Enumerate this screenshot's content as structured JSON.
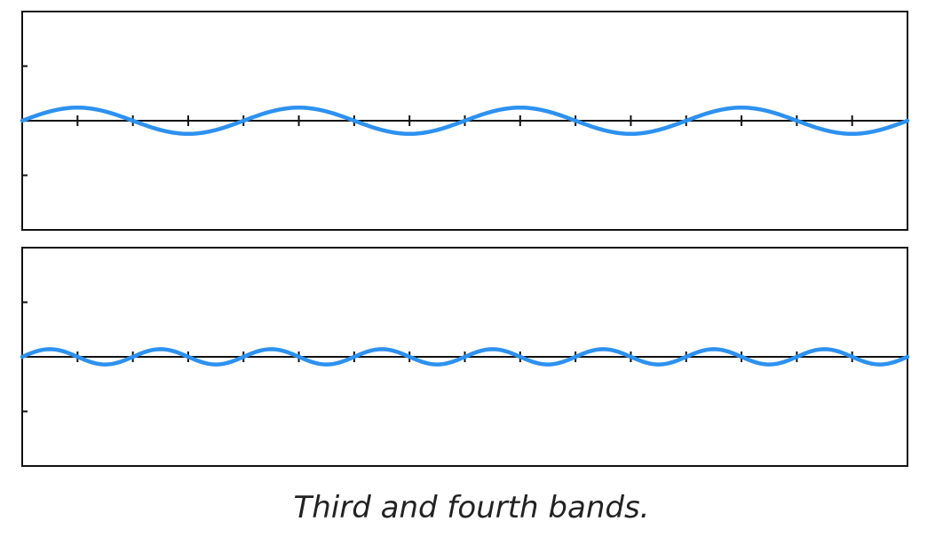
{
  "caption": "Third and fourth bands.",
  "colors": {
    "wave": "#2d91f0",
    "axis": "#111111",
    "frame": "#111111",
    "background": "#ffffff"
  },
  "chart_data": [
    {
      "type": "line",
      "title": "",
      "xlabel": "",
      "ylabel": "",
      "xlim": [
        0,
        16
      ],
      "ylim": [
        -1,
        1
      ],
      "x_ticks": [
        1,
        2,
        3,
        4,
        5,
        6,
        7,
        8,
        9,
        10,
        11,
        12,
        13,
        14,
        15
      ],
      "y_ticks": [
        -0.5,
        0.5
      ],
      "grid": false,
      "legend": "none",
      "series": [
        {
          "function": "sine",
          "amplitude": 0.12,
          "period": 4,
          "phase": 0,
          "samples": 321
        }
      ]
    },
    {
      "type": "line",
      "title": "",
      "xlabel": "",
      "ylabel": "",
      "xlim": [
        0,
        16
      ],
      "ylim": [
        -1,
        1
      ],
      "x_ticks": [
        1,
        2,
        3,
        4,
        5,
        6,
        7,
        8,
        9,
        10,
        11,
        12,
        13,
        14,
        15
      ],
      "y_ticks": [
        -0.5,
        0.5
      ],
      "grid": false,
      "legend": "none",
      "series": [
        {
          "function": "sine",
          "amplitude": 0.07,
          "period": 2,
          "phase": 0,
          "samples": 321
        }
      ]
    }
  ]
}
